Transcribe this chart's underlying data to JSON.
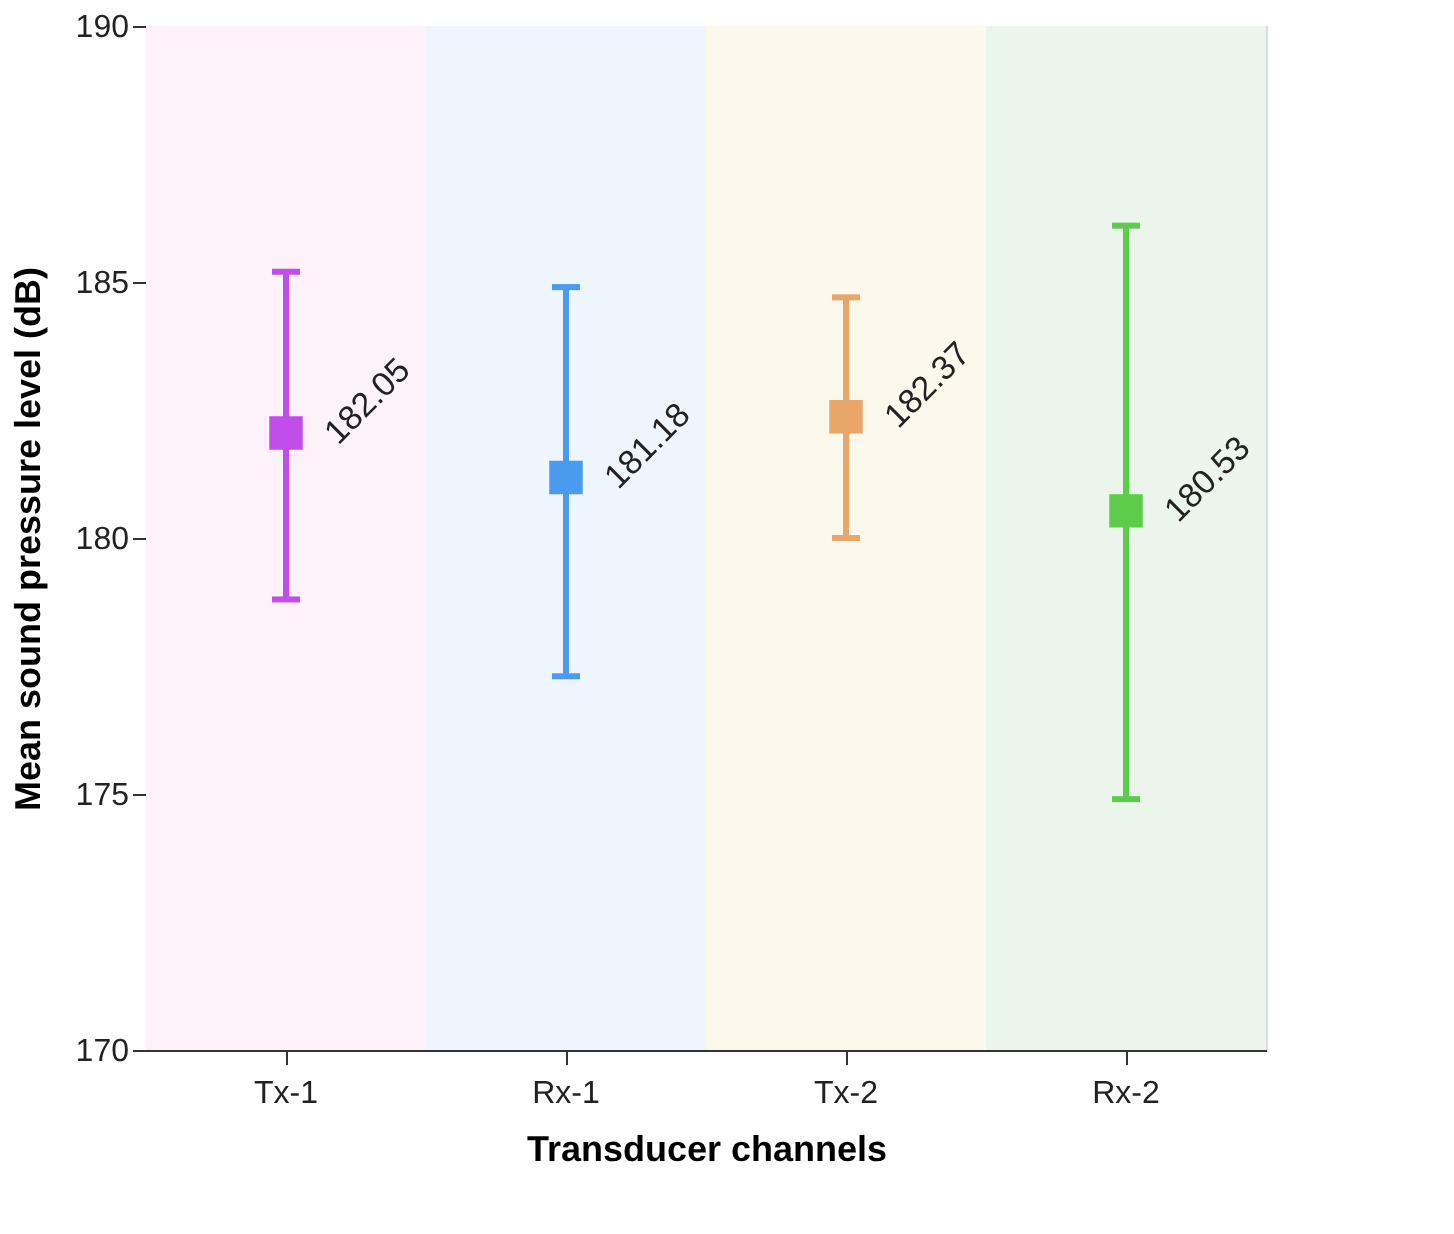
{
  "chart_data": {
    "type": "scatter",
    "xlabel": "Transducer channels",
    "ylabel": "Mean sound pressure level (dB)",
    "categories": [
      "Tx-1",
      "Rx-1",
      "Tx-2",
      "Rx-2"
    ],
    "values": [
      182.05,
      181.18,
      182.37,
      180.53
    ],
    "colors": [
      "#c04ee8",
      "#4a9af0",
      "#e8a66a",
      "#5ccc4a"
    ],
    "errors": [
      [
        178.8,
        185.2
      ],
      [
        177.3,
        184.9
      ],
      [
        180.0,
        184.7
      ],
      [
        174.9,
        186.1
      ]
    ],
    "bands": [
      {
        "axis": "x",
        "from": "Tx-1",
        "to": "Tx-1",
        "color": "#fdf2fa"
      },
      {
        "axis": "x",
        "from": "Rx-1",
        "to": "Rx-1",
        "color": "#eef5fc"
      },
      {
        "axis": "x",
        "from": "Tx-2",
        "to": "Tx-2",
        "color": "#fdf8ec"
      },
      {
        "axis": "x",
        "from": "Rx-2",
        "to": "Rx-2",
        "color": "#ecf5ec"
      }
    ],
    "ylim": [
      170,
      190
    ],
    "yticks": [
      170,
      175,
      180,
      185,
      190
    ],
    "marker": "square",
    "data_labels": true,
    "grid": false
  }
}
